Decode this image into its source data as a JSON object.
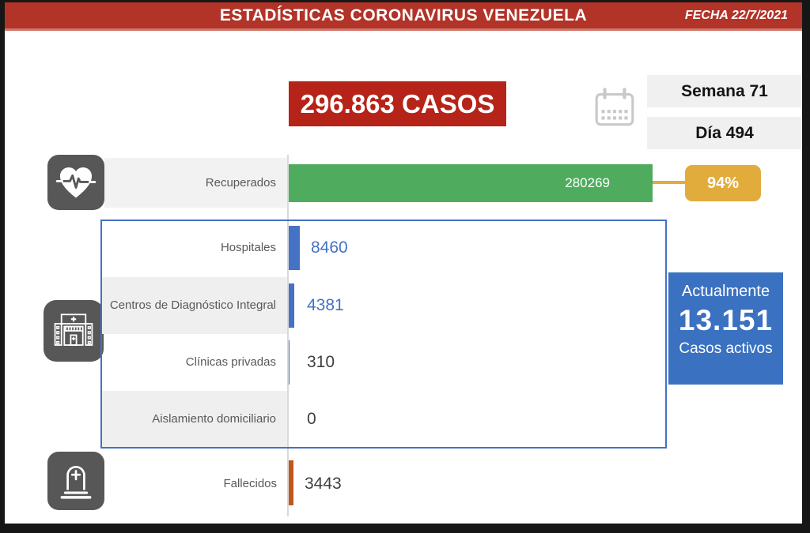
{
  "header": {
    "title": "ESTADÍSTICAS CORONAVIRUS VENEZUELA",
    "date_label": "FECHA 22/7/2021"
  },
  "summary": {
    "total_cases": "296.863 CASOS",
    "week": "Semana 71",
    "day": "Día 494"
  },
  "active_box": {
    "line1": "Actualmente",
    "value": "13.151",
    "line2": "Casos activos"
  },
  "chart_data": {
    "type": "bar",
    "orientation": "horizontal",
    "title": "296.863 CASOS",
    "max_value": 280269,
    "rows": [
      {
        "label": "Recuperados",
        "value": 280269,
        "display": "280269",
        "percent": "94%",
        "color": "#4fac5e"
      },
      {
        "label": "Hospitales",
        "value": 8460,
        "display": "8460",
        "color": "#4472c4"
      },
      {
        "label": "Centros de Diagnóstico Integral",
        "value": 4381,
        "display": "4381",
        "color": "#4472c4"
      },
      {
        "label": "Clínicas privadas",
        "value": 310,
        "display": "310",
        "color": "#4472c4"
      },
      {
        "label": "Aislamiento domiciliario",
        "value": 0,
        "display": "0",
        "color": "#4472c4"
      },
      {
        "label": "Fallecidos",
        "value": 3443,
        "display": "3443",
        "color": "#c0561b"
      }
    ],
    "icons": [
      "heartbeat-icon",
      "hospital-icon",
      "tombstone-icon",
      "calendar-icon"
    ],
    "colors": {
      "header_red": "#b23327",
      "cases_red": "#b62318",
      "recovered_green": "#4fac5e",
      "percent_yellow": "#e2ac3d",
      "bar_blue": "#4472c4",
      "active_blue": "#3a71c1",
      "deaths_orange": "#c0561b",
      "icon_gray": "#575757"
    }
  }
}
